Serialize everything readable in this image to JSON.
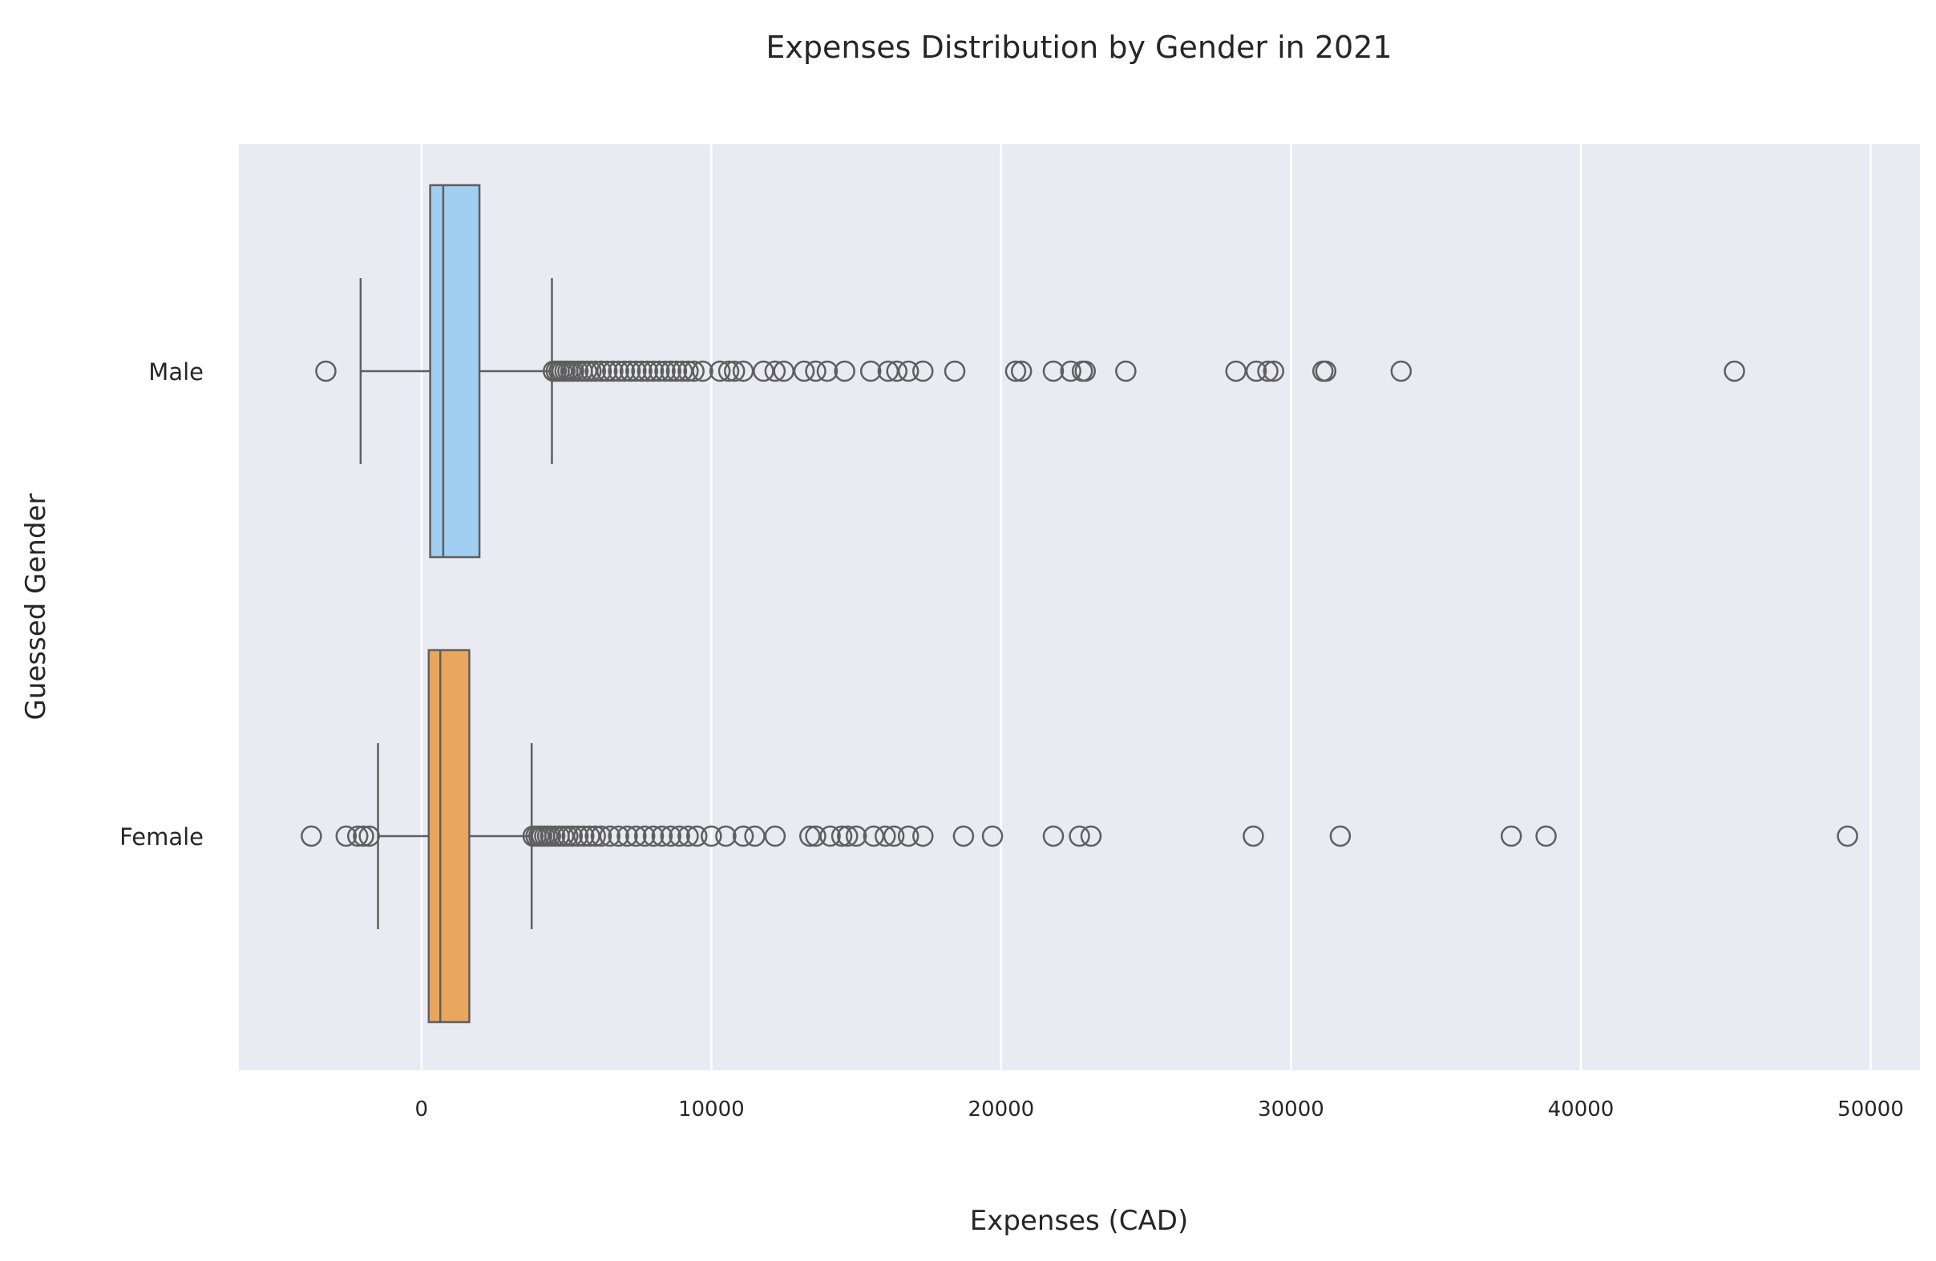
{
  "chart_data": {
    "type": "boxplot",
    "orientation": "horizontal",
    "title": "Expenses Distribution by Gender in 2021",
    "xlabel": "Expenses (CAD)",
    "ylabel": "Guessed Gender",
    "xlim": [
      -6300,
      51700
    ],
    "xticks": [
      0,
      10000,
      20000,
      30000,
      40000,
      50000
    ],
    "xtick_labels": [
      "0",
      "10000",
      "20000",
      "30000",
      "40000",
      "50000"
    ],
    "grid": true,
    "background": "#eaeaf2",
    "grid_color": "#ffffff",
    "line_color": "#5f5f5f",
    "categories": [
      "Male",
      "Female"
    ],
    "series": [
      {
        "category": "Male",
        "color": "#a0cff2",
        "whisker_low": -2100,
        "q1": 300,
        "median": 750,
        "q3": 2000,
        "whisker_high": 4500,
        "outliers": [
          -3300,
          4550,
          4650,
          4750,
          4850,
          4950,
          5050,
          5150,
          5250,
          5400,
          5550,
          5700,
          5850,
          6000,
          6200,
          6400,
          6600,
          6800,
          7000,
          7200,
          7400,
          7600,
          7800,
          8000,
          8200,
          8400,
          8600,
          8800,
          9000,
          9200,
          9400,
          9700,
          10300,
          10600,
          10800,
          11100,
          11800,
          12200,
          12500,
          13200,
          13600,
          14000,
          14600,
          15500,
          16100,
          16400,
          16800,
          17300,
          18400,
          20500,
          20700,
          21800,
          22400,
          22800,
          22900,
          24300,
          28100,
          28800,
          29200,
          29400,
          31100,
          31200,
          33800,
          45300
        ]
      },
      {
        "category": "Female",
        "color": "#e8a75c",
        "whisker_low": -1500,
        "q1": 250,
        "median": 650,
        "q3": 1650,
        "whisker_high": 3800,
        "outliers": [
          -3800,
          -2600,
          -2200,
          -2000,
          -1800,
          3850,
          3950,
          4050,
          4150,
          4250,
          4350,
          4450,
          4600,
          4750,
          4900,
          5050,
          5200,
          5400,
          5600,
          5800,
          6000,
          6200,
          6500,
          6800,
          7100,
          7400,
          7700,
          8000,
          8300,
          8600,
          8900,
          9200,
          9500,
          10000,
          10500,
          11100,
          11500,
          12200,
          13400,
          13600,
          14100,
          14500,
          14700,
          15000,
          15600,
          16000,
          16300,
          16800,
          17300,
          18700,
          19700,
          21800,
          22700,
          23100,
          28700,
          31700,
          37600,
          38800,
          49200
        ]
      }
    ]
  }
}
